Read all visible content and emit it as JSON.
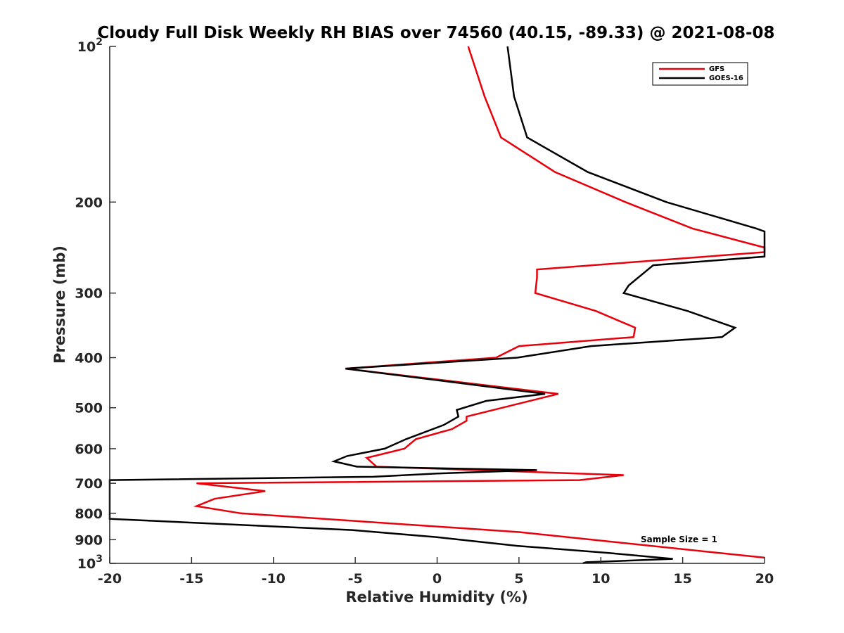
{
  "chart_data": {
    "type": "line",
    "title": "Cloudy Full Disk Weekly RH BIAS over 74560 (40.15, -89.33) @ 2021-08-08",
    "xlabel": "Relative Humidity (%)",
    "ylabel": "Pressure (mb)",
    "xlim": [
      -20,
      20
    ],
    "ylim": [
      100,
      1000
    ],
    "yscale": "log",
    "y_reversed": true,
    "grid": false,
    "x_ticks": [
      {
        "value": -20,
        "label": "-20"
      },
      {
        "value": -15,
        "label": "-15"
      },
      {
        "value": -10,
        "label": "-10"
      },
      {
        "value": -5,
        "label": "-5"
      },
      {
        "value": 0,
        "label": "0"
      },
      {
        "value": 5,
        "label": "5"
      },
      {
        "value": 10,
        "label": "10"
      },
      {
        "value": 15,
        "label": "15"
      },
      {
        "value": 20,
        "label": "20"
      }
    ],
    "y_ticks": [
      {
        "value": 100,
        "label": "10",
        "sup": "2"
      },
      {
        "value": 200,
        "label": "200",
        "sup": ""
      },
      {
        "value": 300,
        "label": "300",
        "sup": ""
      },
      {
        "value": 400,
        "label": "400",
        "sup": ""
      },
      {
        "value": 500,
        "label": "500",
        "sup": ""
      },
      {
        "value": 600,
        "label": "600",
        "sup": ""
      },
      {
        "value": 700,
        "label": "700",
        "sup": ""
      },
      {
        "value": 800,
        "label": "800",
        "sup": ""
      },
      {
        "value": 900,
        "label": "900",
        "sup": ""
      },
      {
        "value": 1000,
        "label": "10",
        "sup": "3"
      }
    ],
    "legend": {
      "placement": "top-right"
    },
    "annotation": "Sample Size = 1",
    "series": [
      {
        "name": "GFS",
        "color": "#e8000b",
        "points": [
          [
            1.9,
            100
          ],
          [
            2.9,
            125
          ],
          [
            3.9,
            150
          ],
          [
            7.2,
            175
          ],
          [
            11.5,
            200
          ],
          [
            15.6,
            225
          ],
          [
            20,
            245
          ],
          [
            20,
            250
          ],
          [
            6.1,
            270
          ],
          [
            6.1,
            280
          ],
          [
            6.0,
            300
          ],
          [
            9.7,
            325
          ],
          [
            12.1,
            350
          ],
          [
            12.0,
            365
          ],
          [
            5.0,
            380
          ],
          [
            3.6,
            400
          ],
          [
            -5.6,
            420
          ],
          [
            7.4,
            470
          ],
          [
            1.8,
            520
          ],
          [
            1.8,
            530
          ],
          [
            0.9,
            550
          ],
          [
            -1.3,
            575
          ],
          [
            -2.0,
            600
          ],
          [
            -4.3,
            625
          ],
          [
            -3.7,
            650
          ],
          [
            11.4,
            675
          ],
          [
            8.7,
            690
          ],
          [
            -14.7,
            700
          ],
          [
            -10.5,
            725
          ],
          [
            -13.6,
            750
          ],
          [
            -14.7,
            775
          ],
          [
            -12.0,
            800
          ],
          [
            5.0,
            870
          ],
          [
            20,
            975
          ]
        ]
      },
      {
        "name": "GOES-16",
        "color": "#000000",
        "points": [
          [
            4.3,
            100
          ],
          [
            4.7,
            125
          ],
          [
            5.5,
            150
          ],
          [
            9.2,
            175
          ],
          [
            14.0,
            200
          ],
          [
            19.5,
            225
          ],
          [
            20,
            228
          ],
          [
            20,
            255
          ],
          [
            13.2,
            265
          ],
          [
            11.7,
            290
          ],
          [
            11.4,
            300
          ],
          [
            15.3,
            325
          ],
          [
            18.2,
            350
          ],
          [
            17.4,
            365
          ],
          [
            9.4,
            380
          ],
          [
            4.9,
            400
          ],
          [
            -5.6,
            420
          ],
          [
            6.6,
            470
          ],
          [
            3.0,
            485
          ],
          [
            1.2,
            505
          ],
          [
            1.3,
            520
          ],
          [
            0.4,
            540
          ],
          [
            -1.9,
            575
          ],
          [
            -3.2,
            600
          ],
          [
            -5.5,
            620
          ],
          [
            -6.3,
            635
          ],
          [
            -4.9,
            650
          ],
          [
            6.1,
            660
          ],
          [
            0.0,
            670
          ],
          [
            -3.9,
            680
          ],
          [
            -20,
            690
          ],
          [
            -20,
            820
          ],
          [
            -18.2,
            825
          ],
          [
            -5.2,
            862
          ],
          [
            0.0,
            890
          ],
          [
            4.9,
            925
          ],
          [
            10.5,
            955
          ],
          [
            14.4,
            980
          ],
          [
            9.1,
            995
          ],
          [
            8.9,
            1000
          ]
        ]
      }
    ]
  }
}
